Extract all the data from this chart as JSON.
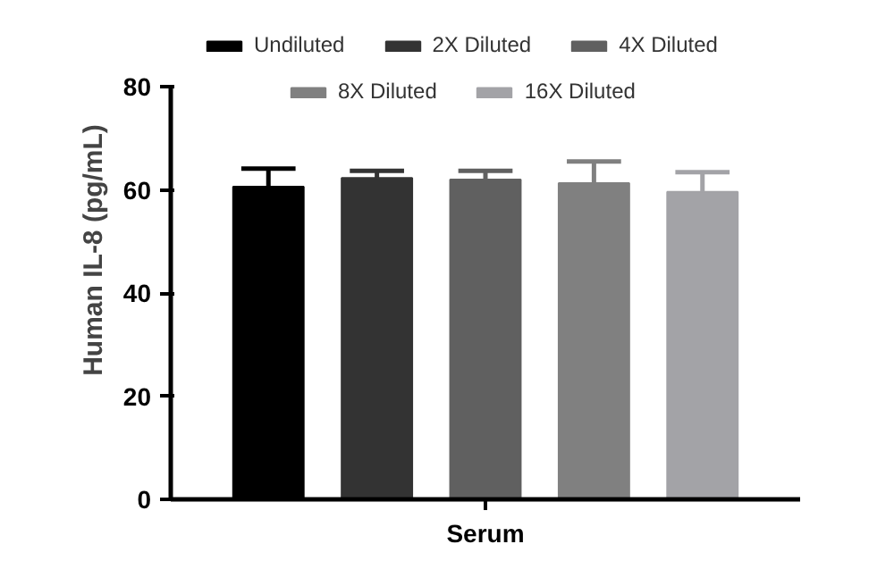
{
  "chart_data": {
    "type": "bar",
    "categories": [
      "Serum"
    ],
    "ylabel": "Human IL-8 (pg/mL)",
    "ylim": [
      0,
      80
    ],
    "yticks": [
      0,
      20,
      40,
      60,
      80
    ],
    "grid": false,
    "legend": "top",
    "series": [
      {
        "name": "Undiluted",
        "color": "#000000",
        "values": [
          60.6
        ],
        "errors": [
          3.5
        ]
      },
      {
        "name": "2X Diluted",
        "color": "#333333",
        "values": [
          62.3
        ],
        "errors": [
          1.4
        ]
      },
      {
        "name": "4X Diluted",
        "color": "#606060",
        "values": [
          62.0
        ],
        "errors": [
          1.7
        ]
      },
      {
        "name": "8X Diluted",
        "color": "#808080",
        "values": [
          61.3
        ],
        "errors": [
          4.2
        ]
      },
      {
        "name": "16X Diluted",
        "color": "#a3a3a7",
        "values": [
          59.6
        ],
        "errors": [
          3.8
        ]
      }
    ]
  }
}
